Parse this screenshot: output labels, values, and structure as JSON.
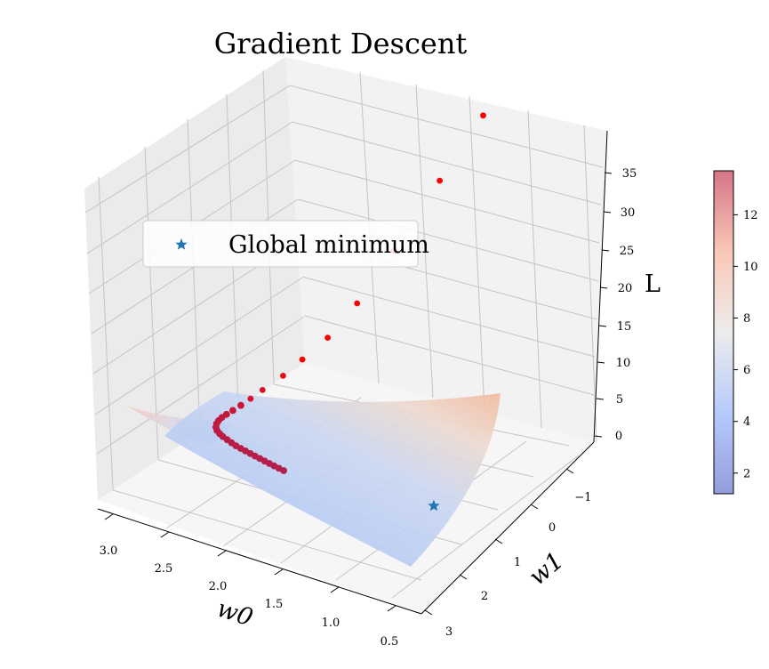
{
  "chart_data": {
    "type": "scatter",
    "subtype": "3d-surface-with-descent-path",
    "title": "Gradient Descent",
    "xlabel": "w0",
    "ylabel": "w1",
    "zlabel": "L",
    "xlim": [
      0.5,
      3.0
    ],
    "ylim": [
      -1.5,
      3.0
    ],
    "zlim": [
      0,
      38
    ],
    "x_ticks": [
      "3.0",
      "2.5",
      "2.0",
      "1.5",
      "1.0",
      "0.5"
    ],
    "y_ticks": [
      "−1",
      "0",
      "1",
      "2",
      "3"
    ],
    "z_ticks": [
      "0",
      "5",
      "10",
      "15",
      "20",
      "25",
      "30",
      "35"
    ],
    "grid": true,
    "legend_position": "upper-left",
    "legend": [
      {
        "label": "Global minimum",
        "marker": "star",
        "color": "#1f77b4"
      }
    ],
    "surface": {
      "colormap": "coolwarm",
      "alpha": 0.5,
      "z_range": [
        1.2,
        13.7
      ]
    },
    "colorbar": {
      "ticks": [
        "2",
        "4",
        "6",
        "8",
        "10",
        "12"
      ],
      "range": [
        1.2,
        13.7
      ]
    },
    "global_minimum": {
      "w0": 1.0,
      "w1": 1.0,
      "L": 1.3
    },
    "descent_path": [
      {
        "w0": 1.45,
        "w1": -1.5,
        "L": 35.0
      },
      {
        "w0": 1.62,
        "w1": -1.0,
        "L": 28.5
      },
      {
        "w0": 1.82,
        "w1": -0.55,
        "L": 21.0
      },
      {
        "w0": 1.98,
        "w1": -0.18,
        "L": 15.5
      },
      {
        "w0": 2.12,
        "w1": 0.08,
        "L": 11.8
      },
      {
        "w0": 2.25,
        "w1": 0.28,
        "L": 9.4
      },
      {
        "w0": 2.35,
        "w1": 0.43,
        "L": 7.6
      },
      {
        "w0": 2.46,
        "w1": 0.58,
        "L": 6.0
      },
      {
        "w0": 2.52,
        "w1": 0.68,
        "L": 5.1
      },
      {
        "w0": 2.57,
        "w1": 0.76,
        "L": 4.4
      },
      {
        "w0": 2.61,
        "w1": 0.83,
        "L": 3.9
      },
      {
        "w0": 2.64,
        "w1": 0.89,
        "L": 3.55
      },
      {
        "w0": 2.66,
        "w1": 0.94,
        "L": 3.3
      },
      {
        "w0": 2.67,
        "w1": 0.99,
        "L": 3.1
      },
      {
        "w0": 2.67,
        "w1": 1.04,
        "L": 2.95
      },
      {
        "w0": 2.66,
        "w1": 1.09,
        "L": 2.8
      },
      {
        "w0": 2.64,
        "w1": 1.13,
        "L": 2.7
      },
      {
        "w0": 2.61,
        "w1": 1.16,
        "L": 2.6
      },
      {
        "w0": 2.58,
        "w1": 1.18,
        "L": 2.5
      },
      {
        "w0": 2.54,
        "w1": 1.2,
        "L": 2.42
      },
      {
        "w0": 2.5,
        "w1": 1.22,
        "L": 2.34
      },
      {
        "w0": 2.46,
        "w1": 1.24,
        "L": 2.27
      },
      {
        "w0": 2.42,
        "w1": 1.25,
        "L": 2.2
      },
      {
        "w0": 2.38,
        "w1": 1.26,
        "L": 2.14
      },
      {
        "w0": 2.34,
        "w1": 1.27,
        "L": 2.08
      },
      {
        "w0": 2.3,
        "w1": 1.28,
        "L": 2.02
      },
      {
        "w0": 2.26,
        "w1": 1.29,
        "L": 1.97
      },
      {
        "w0": 2.22,
        "w1": 1.3,
        "L": 1.92
      },
      {
        "w0": 2.18,
        "w1": 1.31,
        "L": 1.87
      },
      {
        "w0": 2.14,
        "w1": 1.32,
        "L": 1.83
      },
      {
        "w0": 2.1,
        "w1": 1.33,
        "L": 1.79
      },
      {
        "w0": 2.06,
        "w1": 1.34,
        "L": 1.75
      }
    ],
    "colors": {
      "path_high": "#ff0000",
      "path_low": "#b0204f",
      "minimum_star": "#1f77b4"
    }
  }
}
